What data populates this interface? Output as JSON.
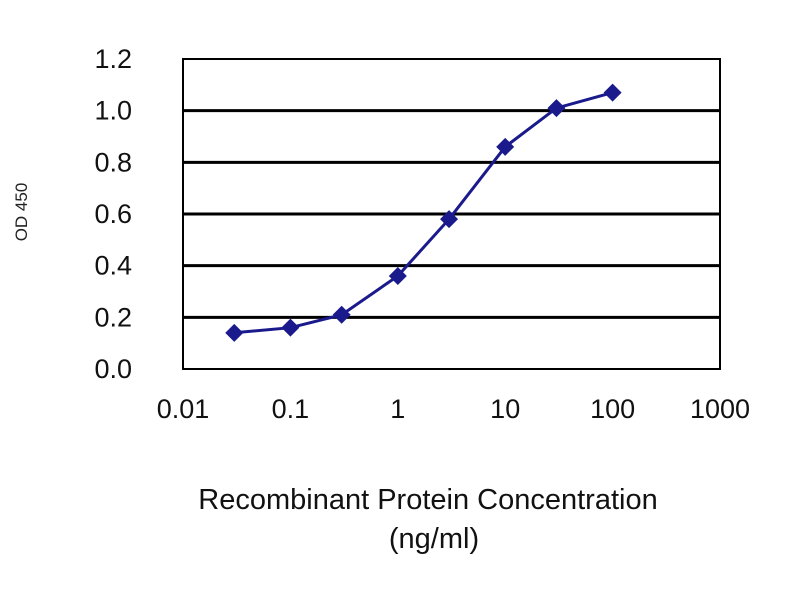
{
  "chart_data": {
    "type": "line",
    "title": "",
    "xlabel": "Recombinant Protein Concentration",
    "xlabel_unit": "(ng/ml)",
    "ylabel": "OD 450",
    "x_scale": "log",
    "xlim": [
      0.01,
      1000
    ],
    "ylim": [
      0.0,
      1.2
    ],
    "x_ticks": [
      "0.01",
      "0.1",
      "1",
      "10",
      "100",
      "1000"
    ],
    "y_ticks": [
      "0.0",
      "0.2",
      "0.4",
      "0.6",
      "0.8",
      "1.0",
      "1.2"
    ],
    "grid": "horizontal",
    "legend": "none",
    "colors": {
      "series": "#1a1a8c",
      "grid": "#000000",
      "frame": "#000000"
    },
    "series": [
      {
        "x": [
          0.03,
          0.1,
          0.3,
          1,
          3,
          10,
          30,
          100
        ],
        "y": [
          0.14,
          0.16,
          0.21,
          0.36,
          0.58,
          0.86,
          1.01,
          1.07
        ]
      }
    ]
  }
}
